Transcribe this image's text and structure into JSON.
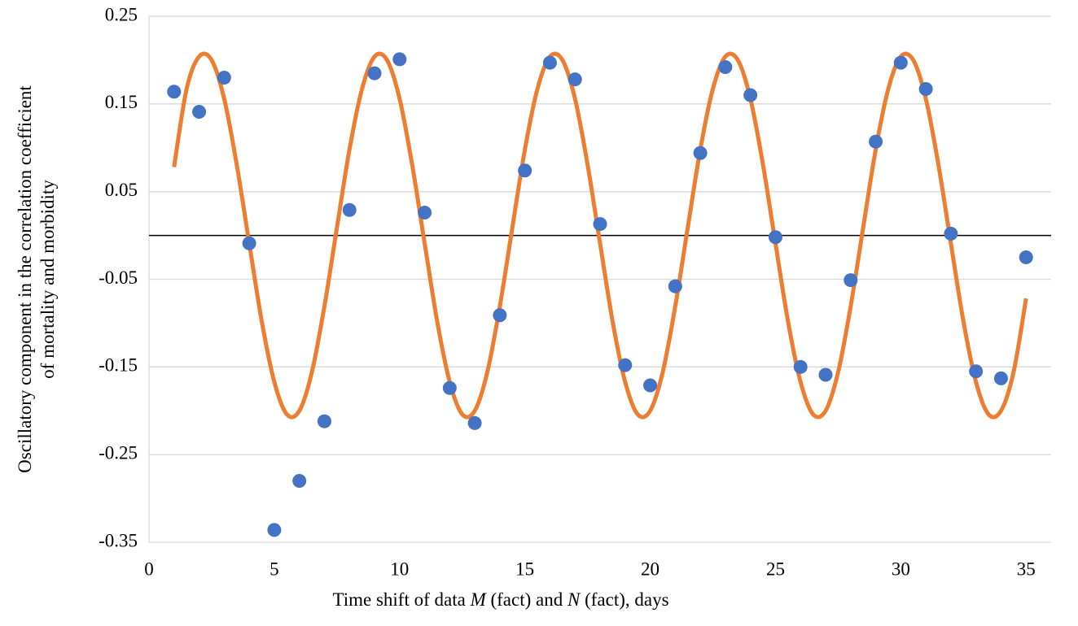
{
  "chart_data": {
    "type": "scatter",
    "y_label": [
      "Oscillatory component in the correlation coefficient",
      "of mortality and morbidity"
    ],
    "x_label": [
      "Time shift of data ",
      "M",
      " (fact) and ",
      "N",
      " (fact), days"
    ],
    "xlim": [
      0,
      36
    ],
    "xticks": [
      0,
      5,
      10,
      15,
      20,
      25,
      30,
      35
    ],
    "ylim": [
      -0.35,
      0.25
    ],
    "yticks": [
      0.25,
      0.15,
      0.05,
      -0.05,
      -0.15,
      -0.25,
      -0.35
    ],
    "grid": true,
    "zero_line": true,
    "series": [
      {
        "kind": "points",
        "color": "#4472c4",
        "x": [
          1,
          2,
          3,
          4,
          5,
          6,
          7,
          8,
          9,
          10,
          11,
          12,
          13,
          14,
          15,
          16,
          17,
          18,
          19,
          20,
          21,
          22,
          23,
          24,
          25,
          26,
          27,
          28,
          29,
          30,
          31,
          32,
          33,
          34,
          35
        ],
        "values": [
          0.164,
          0.141,
          0.18,
          -0.009,
          -0.336,
          -0.28,
          -0.212,
          0.029,
          0.185,
          0.201,
          0.026,
          -0.174,
          -0.214,
          -0.091,
          0.074,
          0.197,
          0.178,
          0.013,
          -0.148,
          -0.171,
          -0.058,
          0.094,
          0.192,
          0.16,
          -0.002,
          -0.15,
          -0.159,
          -0.051,
          0.107,
          0.197,
          0.167,
          0.002,
          -0.155,
          -0.163,
          -0.025
        ]
      },
      {
        "kind": "curve",
        "color": "#ed7d31",
        "x": [
          1,
          1.5,
          2,
          2.5,
          3,
          3.5,
          4,
          4.5,
          5,
          5.5,
          6,
          6.5,
          7,
          7.5,
          8,
          8.5,
          9,
          9.5,
          10,
          10.5,
          11,
          11.5,
          12,
          12.5,
          13,
          13.5,
          14,
          14.5,
          15,
          15.5,
          16,
          16.5,
          17,
          17.5,
          18,
          18.5,
          19,
          19.5,
          20,
          20.5,
          21,
          21.5,
          22,
          22.5,
          23,
          23.5,
          24,
          24.5,
          25,
          25.5,
          26,
          26.5,
          27,
          27.5,
          28,
          28.5,
          29,
          29.5,
          30,
          30.5,
          31,
          31.5,
          32,
          32.5,
          33,
          33.5,
          34,
          34.5,
          35
        ],
        "values": [
          0.078,
          0.167,
          0.204,
          0.2,
          0.156,
          0.081,
          -0.009,
          -0.098,
          -0.167,
          -0.204,
          -0.2,
          -0.156,
          -0.081,
          0.009,
          0.098,
          0.167,
          0.204,
          0.2,
          0.156,
          0.081,
          -0.009,
          -0.098,
          -0.167,
          -0.204,
          -0.2,
          -0.156,
          -0.081,
          0.009,
          0.098,
          0.167,
          0.204,
          0.2,
          0.156,
          0.081,
          -0.009,
          -0.098,
          -0.167,
          -0.204,
          -0.2,
          -0.156,
          -0.081,
          0.009,
          0.098,
          0.167,
          0.204,
          0.2,
          0.156,
          0.081,
          -0.009,
          -0.098,
          -0.167,
          -0.204,
          -0.2,
          -0.156,
          -0.081,
          0.009,
          0.098,
          0.167,
          0.204,
          0.2,
          0.156,
          0.081,
          -0.009,
          -0.098,
          -0.167,
          -0.204,
          -0.2,
          -0.156,
          -0.072
        ]
      }
    ]
  }
}
